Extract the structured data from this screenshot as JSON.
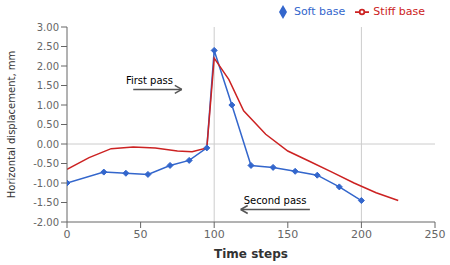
{
  "chart_data": {
    "type": "line",
    "xlabel": "Time steps",
    "ylabel": "Horizontal displacement, mm",
    "xlim": [
      0,
      250
    ],
    "xticks": [
      0,
      50,
      100,
      150,
      200,
      250
    ],
    "ylim": [
      -2.0,
      3.0
    ],
    "yticks": [
      {
        "value": -2.0,
        "label": "-2.00"
      },
      {
        "value": -1.5,
        "label": "-1.50"
      },
      {
        "value": -1.0,
        "label": "-1.00"
      },
      {
        "value": -0.5,
        "label": "-0.50"
      },
      {
        "value": 0.0,
        "label": "0.00"
      },
      {
        "value": 0.5,
        "label": "0.50"
      },
      {
        "value": 1.0,
        "label": "1.00"
      },
      {
        "value": 1.5,
        "label": "1.50"
      },
      {
        "value": 2.0,
        "label": "2.00"
      },
      {
        "value": 2.5,
        "label": "2.50"
      },
      {
        "value": 3.0,
        "label": "3.00"
      }
    ],
    "legend": "upper right",
    "series": [
      {
        "name": "Soft base",
        "color": "#3366CC",
        "marker": "diamond",
        "x": [
          0,
          25,
          40,
          55,
          70,
          83,
          95,
          100,
          112,
          125,
          140,
          155,
          170,
          185,
          200
        ],
        "values": [
          -1.0,
          -0.72,
          -0.75,
          -0.78,
          -0.55,
          -0.42,
          -0.1,
          2.4,
          1.0,
          -0.55,
          -0.6,
          -0.7,
          -0.8,
          -1.1,
          -1.45
        ]
      },
      {
        "name": "Stiff base",
        "color": "#CC2222",
        "marker": "none",
        "x": [
          0,
          15,
          30,
          45,
          60,
          75,
          85,
          95,
          100,
          110,
          120,
          135,
          150,
          165,
          180,
          195,
          210,
          225
        ],
        "values": [
          -0.65,
          -0.35,
          -0.12,
          -0.08,
          -0.1,
          -0.18,
          -0.2,
          -0.1,
          2.2,
          1.65,
          0.85,
          0.25,
          -0.18,
          -0.45,
          -0.72,
          -1.0,
          -1.25,
          -1.45
        ]
      }
    ],
    "vlines": [
      100,
      200
    ],
    "hlines": [
      0
    ],
    "annotations": [
      {
        "text": "First pass",
        "x": 40,
        "y": 1.55,
        "arrow_from": [
          45,
          1.4
        ],
        "arrow_to": [
          78,
          1.4
        ]
      },
      {
        "text": "Second pass",
        "x": 120,
        "y": -1.55,
        "arrow_from": [
          165,
          -1.68
        ],
        "arrow_to": [
          118,
          -1.68
        ]
      }
    ]
  }
}
